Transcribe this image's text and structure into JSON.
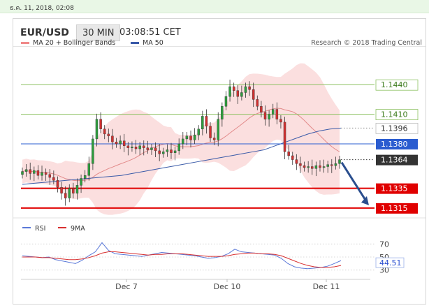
{
  "datestamp": "ธ.ค. 11, 2018, 02:08",
  "header": {
    "symbol": "EUR/USD",
    "timeframe": "30 MIN",
    "time": "03:08:51 CET"
  },
  "legend": [
    {
      "name": "MA 20 + Bollinger Bands",
      "color": "#f08a8a"
    },
    {
      "name": "MA 50",
      "color": "#3a5aa8"
    }
  ],
  "research": "Research © 2018 Trading Central",
  "colors": {
    "up": "#2e9e3e",
    "down": "#d13030",
    "support": "#e00000",
    "resistance": "#8cc060",
    "pivot": "#2a5cd0",
    "current": "#333333",
    "band": "#f8c4c4",
    "ma20": "#e28a8a",
    "ma50": "#3a5aa8",
    "rsi": "#5a78d8",
    "rsi_ma": "#d83030"
  },
  "chart_data": [
    {
      "type": "candlestick",
      "title": "EUR/USD",
      "x_tick_labels": [
        "Dec 7",
        "Dec 10",
        "Dec 11"
      ],
      "ylim": [
        1.1305,
        1.1455
      ],
      "levels": [
        {
          "label": "1.1440",
          "value": 1.144,
          "kind": "resistance"
        },
        {
          "label": "1.1410",
          "value": 1.141,
          "kind": "resistance"
        },
        {
          "label": "1.1396",
          "value": 1.1396,
          "kind": "ma50"
        },
        {
          "label": "1.1380",
          "value": 1.138,
          "kind": "pivot"
        },
        {
          "label": "1.1364",
          "value": 1.1364,
          "kind": "current"
        },
        {
          "label": "1.1335",
          "value": 1.1335,
          "kind": "support"
        },
        {
          "label": "1.1315",
          "value": 1.1315,
          "kind": "support"
        }
      ],
      "close": [
        1.1352,
        1.1354,
        1.135,
        1.1353,
        1.1348,
        1.1351,
        1.1349,
        1.1346,
        1.1343,
        1.1336,
        1.133,
        1.1325,
        1.1335,
        1.133,
        1.1338,
        1.1345,
        1.1348,
        1.136,
        1.1385,
        1.1405,
        1.1395,
        1.139,
        1.1388,
        1.1382,
        1.138,
        1.1383,
        1.1378,
        1.1376,
        1.1377,
        1.1375,
        1.1378,
        1.1376,
        1.1374,
        1.1376,
        1.1373,
        1.137,
        1.1372,
        1.1374,
        1.1371,
        1.1373,
        1.138,
        1.1385,
        1.1388,
        1.1384,
        1.1389,
        1.1395,
        1.1408,
        1.1398,
        1.1386,
        1.1384,
        1.1405,
        1.1418,
        1.1428,
        1.1438,
        1.1434,
        1.1428,
        1.1432,
        1.1438,
        1.1435,
        1.1425,
        1.1418,
        1.1412,
        1.1405,
        1.141,
        1.1415,
        1.1405,
        1.1402,
        1.1372,
        1.1368,
        1.1364,
        1.136,
        1.1358,
        1.1356,
        1.1357,
        1.1355,
        1.1358,
        1.1356,
        1.1357,
        1.1359,
        1.1358,
        1.136,
        1.1364
      ],
      "ma50": [
        1.1339,
        1.134,
        1.1341,
        1.1342,
        1.1343,
        1.1344,
        1.1345,
        1.1346,
        1.1347,
        1.1348,
        1.135,
        1.1352,
        1.1354,
        1.1356,
        1.1358,
        1.136,
        1.1362,
        1.1364,
        1.1366,
        1.1368,
        1.137,
        1.1372,
        1.1374,
        1.1378,
        1.1382,
        1.1386,
        1.139,
        1.1393,
        1.1395,
        1.1396
      ],
      "forecast": {
        "from": 1.1364,
        "to": 1.1315
      }
    },
    {
      "type": "line",
      "title": "RSI",
      "ylim": [
        20,
        80
      ],
      "yticks": [
        "70",
        "50",
        "30"
      ],
      "current_label": "44.51",
      "series": [
        {
          "name": "RSI",
          "values": [
            52,
            51,
            50,
            49,
            50,
            46,
            44,
            42,
            40,
            45,
            52,
            58,
            72,
            60,
            55,
            54,
            53,
            52,
            51,
            53,
            55,
            57,
            56,
            55,
            54,
            53,
            52,
            50,
            48,
            49,
            51,
            55,
            62,
            58,
            57,
            56,
            55,
            54,
            53,
            48,
            40,
            35,
            33,
            32,
            33,
            34,
            36,
            40,
            44.51
          ]
        },
        {
          "name": "9MA",
          "values": [
            50,
            50,
            50,
            49,
            49,
            48,
            47,
            46,
            46,
            47,
            49,
            52,
            56,
            58,
            58,
            57,
            56,
            55,
            54,
            53,
            54,
            54,
            55,
            55,
            55,
            54,
            53,
            52,
            51,
            51,
            51,
            52,
            54,
            55,
            56,
            56,
            55,
            55,
            54,
            52,
            48,
            44,
            40,
            37,
            35,
            34,
            34,
            35,
            37
          ]
        }
      ]
    }
  ]
}
